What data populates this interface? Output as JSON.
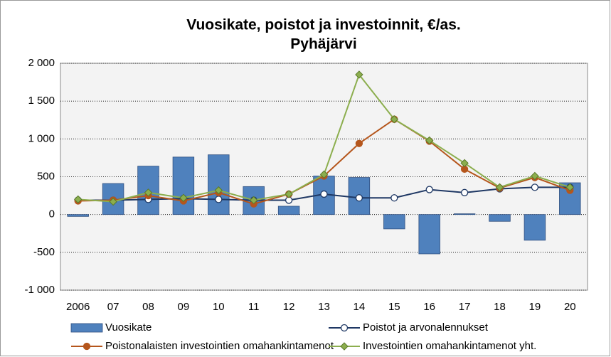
{
  "chart_data": {
    "type": "bar-line",
    "title": "Vuosikate, poistot ja investoinnit, €/as.",
    "subtitle": "Pyhäjärvi",
    "categories": [
      "2006",
      "07",
      "08",
      "09",
      "10",
      "11",
      "12",
      "13",
      "14",
      "15",
      "16",
      "17",
      "18",
      "19",
      "20"
    ],
    "series": [
      {
        "name": "Vuosikate",
        "type": "bar",
        "color": "#4f81bd",
        "values": [
          -25,
          410,
          640,
          760,
          790,
          370,
          110,
          510,
          490,
          -190,
          -520,
          10,
          -90,
          -340,
          420
        ]
      },
      {
        "name": "Poistot ja arvonalennukset",
        "type": "line",
        "marker": "open-circle",
        "color": "#1f3864",
        "values": [
          190,
          190,
          200,
          210,
          200,
          190,
          190,
          270,
          220,
          220,
          330,
          290,
          340,
          360,
          360
        ]
      },
      {
        "name": "Poistonalaisten investointien omahankintamenot",
        "type": "line",
        "marker": "circle",
        "color": "#b5561c",
        "values": [
          180,
          190,
          250,
          180,
          290,
          140,
          270,
          510,
          940,
          1260,
          970,
          600,
          350,
          490,
          320
        ]
      },
      {
        "name": "Investointien omahankintamenot yht.",
        "type": "line",
        "marker": "diamond",
        "color": "#8cae4e",
        "values": [
          200,
          170,
          290,
          220,
          320,
          190,
          270,
          530,
          1850,
          1260,
          980,
          680,
          360,
          510,
          360
        ]
      }
    ],
    "ylim": [
      -1000,
      2000
    ],
    "yticks": [
      {
        "value": -1000,
        "label": "-1 000"
      },
      -500,
      0,
      500,
      {
        "value": 1000,
        "label": "1 000"
      },
      {
        "value": 1500,
        "label": "1 500"
      },
      {
        "value": 2000,
        "label": "2 000"
      }
    ],
    "grid": true,
    "legend": "bottom"
  }
}
